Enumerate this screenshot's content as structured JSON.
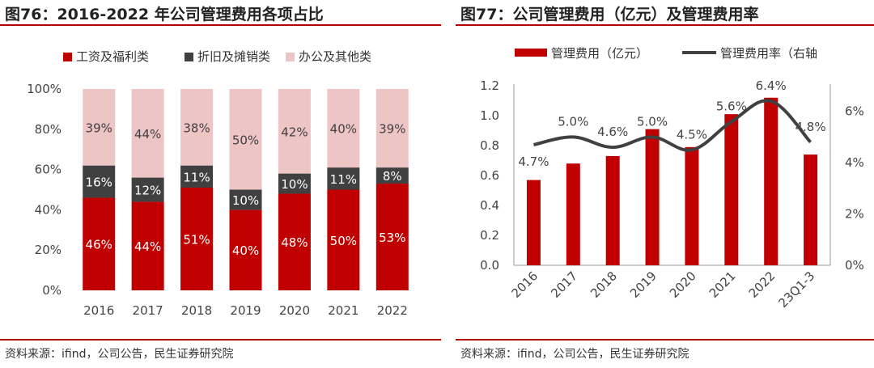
{
  "left_panel": {
    "title": "图76：2016-2022 年公司管理费用各项占比",
    "source": "资料来源：ifind，公司公告，民生证券研究院"
  },
  "right_panel": {
    "title": "图77：公司管理费用（亿元）及管理费用率",
    "source": "资料来源：ifind，公司公告，民生证券研究院"
  },
  "colors": {
    "red": "#c00000",
    "dark": "#404040",
    "pink": "#eec5c5",
    "line": "#404040"
  },
  "chart_data": [
    {
      "type": "bar",
      "stacked": true,
      "title": "2016-2022 年公司管理费用各项占比",
      "categories": [
        "2016",
        "2017",
        "2018",
        "2019",
        "2020",
        "2021",
        "2022"
      ],
      "series": [
        {
          "name": "工资及福利类",
          "values": [
            46,
            44,
            51,
            40,
            48,
            50,
            53
          ],
          "labels": [
            "46%",
            "44%",
            "51%",
            "40%",
            "48%",
            "50%",
            "53%"
          ]
        },
        {
          "name": "折旧及摊销类",
          "values": [
            16,
            12,
            11,
            10,
            10,
            11,
            8
          ],
          "labels": [
            "16%",
            "12%",
            "11%",
            "10%",
            "10%",
            "11%",
            "8%"
          ]
        },
        {
          "name": "办公及其他类",
          "values": [
            39,
            44,
            38,
            50,
            42,
            40,
            39
          ],
          "labels": [
            "39%",
            "44%",
            "38%",
            "50%",
            "42%",
            "40%",
            "39%"
          ]
        }
      ],
      "ylim": [
        0,
        100
      ],
      "yticks": [
        "0%",
        "20%",
        "40%",
        "60%",
        "80%",
        "100%"
      ],
      "legend": "top"
    },
    {
      "type": "bar+line",
      "title": "公司管理费用（亿元）及管理费用率",
      "categories": [
        "2016",
        "2017",
        "2018",
        "2019",
        "2020",
        "2021",
        "2022",
        "23Q1-3"
      ],
      "bar_series": {
        "name": "管理费用（亿元）",
        "values": [
          0.57,
          0.68,
          0.73,
          0.91,
          0.79,
          1.01,
          1.12,
          0.74
        ]
      },
      "line_series": {
        "name": "管理费用率（右轴",
        "values": [
          4.7,
          5.0,
          4.6,
          5.0,
          4.5,
          5.6,
          6.4,
          4.8
        ],
        "labels": [
          "4.7%",
          "5.0%",
          "4.6%",
          "5.0%",
          "4.5%",
          "5.6%",
          "6.4%",
          "4.8%"
        ]
      },
      "ylim_left": [
        0,
        1.2
      ],
      "yticks_left": [
        "0.0",
        "0.2",
        "0.4",
        "0.6",
        "0.8",
        "1.0",
        "1.2"
      ],
      "ylim_right": [
        0,
        7
      ],
      "yticks_right": [
        "0%",
        "2%",
        "4%",
        "6%"
      ],
      "legend": "top"
    }
  ]
}
